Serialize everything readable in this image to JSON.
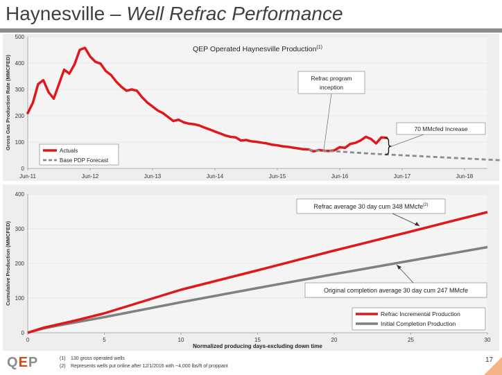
{
  "title": {
    "main": "Haynesville – ",
    "italic": "Well Refrac Performance"
  },
  "footnotes": [
    {
      "num": "(1)",
      "text": "130 gross operated wells"
    },
    {
      "num": "(2)",
      "text": "Represents wells put online after 12/1/2016 with ~4,000 lbs/ft of proppant"
    }
  ],
  "logo": {
    "text": "QEP",
    "sub": "RESOURCES"
  },
  "page_number": "17",
  "colors": {
    "actual": "#e0181b",
    "forecast": "#8c8c8c",
    "initial": "#808080",
    "panel_bg": "#eeeeee",
    "plot_bg": "#f4f4f4"
  },
  "chart_data": [
    {
      "type": "line",
      "title": "QEP Operated Haynesville Production",
      "title_sup": "(1)",
      "ylabel": "Gross Gas Production Rate (MMCFED)",
      "ylim": [
        0,
        500
      ],
      "yticks": [
        "0",
        "100",
        "200",
        "300",
        "400",
        "500"
      ],
      "x_tick_labels": [
        "Jun-11",
        "Jun-12",
        "Jun-13",
        "Jun-14",
        "Jun-15",
        "Jun-16",
        "Jun-17",
        "Jun-18"
      ],
      "legend": [
        "Actuals",
        "Base PDP Forecast"
      ],
      "legend_position": "bottom-left",
      "annotations": [
        {
          "text": "Refrac program inception"
        },
        {
          "text": "70 MMcfed Increase"
        }
      ],
      "series": [
        {
          "name": "Actuals",
          "points": [
            [
              "2011-06",
              210
            ],
            [
              "2011-07",
              250
            ],
            [
              "2011-08",
              320
            ],
            [
              "2011-09",
              335
            ],
            [
              "2011-10",
              290
            ],
            [
              "2011-11",
              265
            ],
            [
              "2011-12",
              320
            ],
            [
              "2012-01",
              375
            ],
            [
              "2012-02",
              360
            ],
            [
              "2012-03",
              395
            ],
            [
              "2012-04",
              450
            ],
            [
              "2012-05",
              458
            ],
            [
              "2012-06",
              425
            ],
            [
              "2012-07",
              405
            ],
            [
              "2012-08",
              398
            ],
            [
              "2012-09",
              370
            ],
            [
              "2012-10",
              355
            ],
            [
              "2012-11",
              330
            ],
            [
              "2012-12",
              310
            ],
            [
              "2013-01",
              295
            ],
            [
              "2013-02",
              300
            ],
            [
              "2013-03",
              295
            ],
            [
              "2013-04",
              270
            ],
            [
              "2013-05",
              250
            ],
            [
              "2013-06",
              235
            ],
            [
              "2013-07",
              220
            ],
            [
              "2013-08",
              210
            ],
            [
              "2013-09",
              195
            ],
            [
              "2013-10",
              180
            ],
            [
              "2013-11",
              185
            ],
            [
              "2013-12",
              175
            ],
            [
              "2014-01",
              170
            ],
            [
              "2014-02",
              168
            ],
            [
              "2014-03",
              163
            ],
            [
              "2014-04",
              155
            ],
            [
              "2014-05",
              148
            ],
            [
              "2014-06",
              140
            ],
            [
              "2014-07",
              133
            ],
            [
              "2014-08",
              125
            ],
            [
              "2014-09",
              120
            ],
            [
              "2014-10",
              118
            ],
            [
              "2014-11",
              106
            ],
            [
              "2014-12",
              108
            ],
            [
              "2015-01",
              103
            ],
            [
              "2015-02",
              101
            ],
            [
              "2015-03",
              98
            ],
            [
              "2015-04",
              95
            ],
            [
              "2015-05",
              90
            ],
            [
              "2015-06",
              88
            ],
            [
              "2015-07",
              84
            ],
            [
              "2015-08",
              82
            ],
            [
              "2015-09",
              79
            ],
            [
              "2015-10",
              76
            ],
            [
              "2015-11",
              73
            ],
            [
              "2015-12",
              72
            ],
            [
              "2016-01",
              65
            ],
            [
              "2016-02",
              70
            ],
            [
              "2016-03",
              67
            ],
            [
              "2016-04",
              66
            ],
            [
              "2016-05",
              69
            ],
            [
              "2016-06",
              81
            ],
            [
              "2016-07",
              78
            ],
            [
              "2016-08",
              93
            ],
            [
              "2016-09",
              97
            ],
            [
              "2016-10",
              106
            ],
            [
              "2016-11",
              120
            ],
            [
              "2016-12",
              112
            ],
            [
              "2017-01",
              95
            ],
            [
              "2017-02",
              118
            ],
            [
              "2017-03",
              116
            ]
          ]
        },
        {
          "name": "Base PDP Forecast",
          "points": [
            [
              "2015-12",
              70
            ],
            [
              "2016-06",
              64
            ],
            [
              "2017-01",
              55
            ],
            [
              "2017-06",
              50
            ],
            [
              "2018-01",
              43
            ],
            [
              "2018-06",
              38
            ],
            [
              "2019-01",
              31
            ]
          ]
        }
      ]
    },
    {
      "type": "line",
      "xlabel": "Normalized producing days-excluding down time",
      "ylabel": "Cumulative Production (MMCFED)",
      "xlim": [
        0,
        30
      ],
      "ylim": [
        0,
        400
      ],
      "xticks": [
        "0",
        "5",
        "10",
        "15",
        "20",
        "25",
        "30"
      ],
      "yticks": [
        "0",
        "100",
        "200",
        "300",
        "400"
      ],
      "legend": [
        "Refrac Incremental Production",
        "Initial Completion Production"
      ],
      "legend_position": "bottom-right",
      "annotations": [
        {
          "text": "Refrac average 30 day cum 348 MMcfe",
          "sup": "(2)"
        },
        {
          "text": "Original completion average 30 day cum 247 MMcfe"
        }
      ],
      "series": [
        {
          "name": "Refrac Incremental Production",
          "x": [
            0,
            0.5,
            1,
            2,
            3,
            4,
            5,
            10,
            15,
            20,
            25,
            30
          ],
          "y": [
            0,
            7,
            14,
            24,
            34,
            45,
            56,
            124,
            180,
            237,
            292,
            348
          ]
        },
        {
          "name": "Initial Completion Production",
          "x": [
            0,
            0.5,
            1,
            2,
            3,
            4,
            5,
            10,
            15,
            20,
            25,
            30
          ],
          "y": [
            0,
            6,
            12,
            21,
            29,
            37,
            45,
            88,
            129,
            169,
            208,
            247
          ]
        }
      ]
    }
  ]
}
